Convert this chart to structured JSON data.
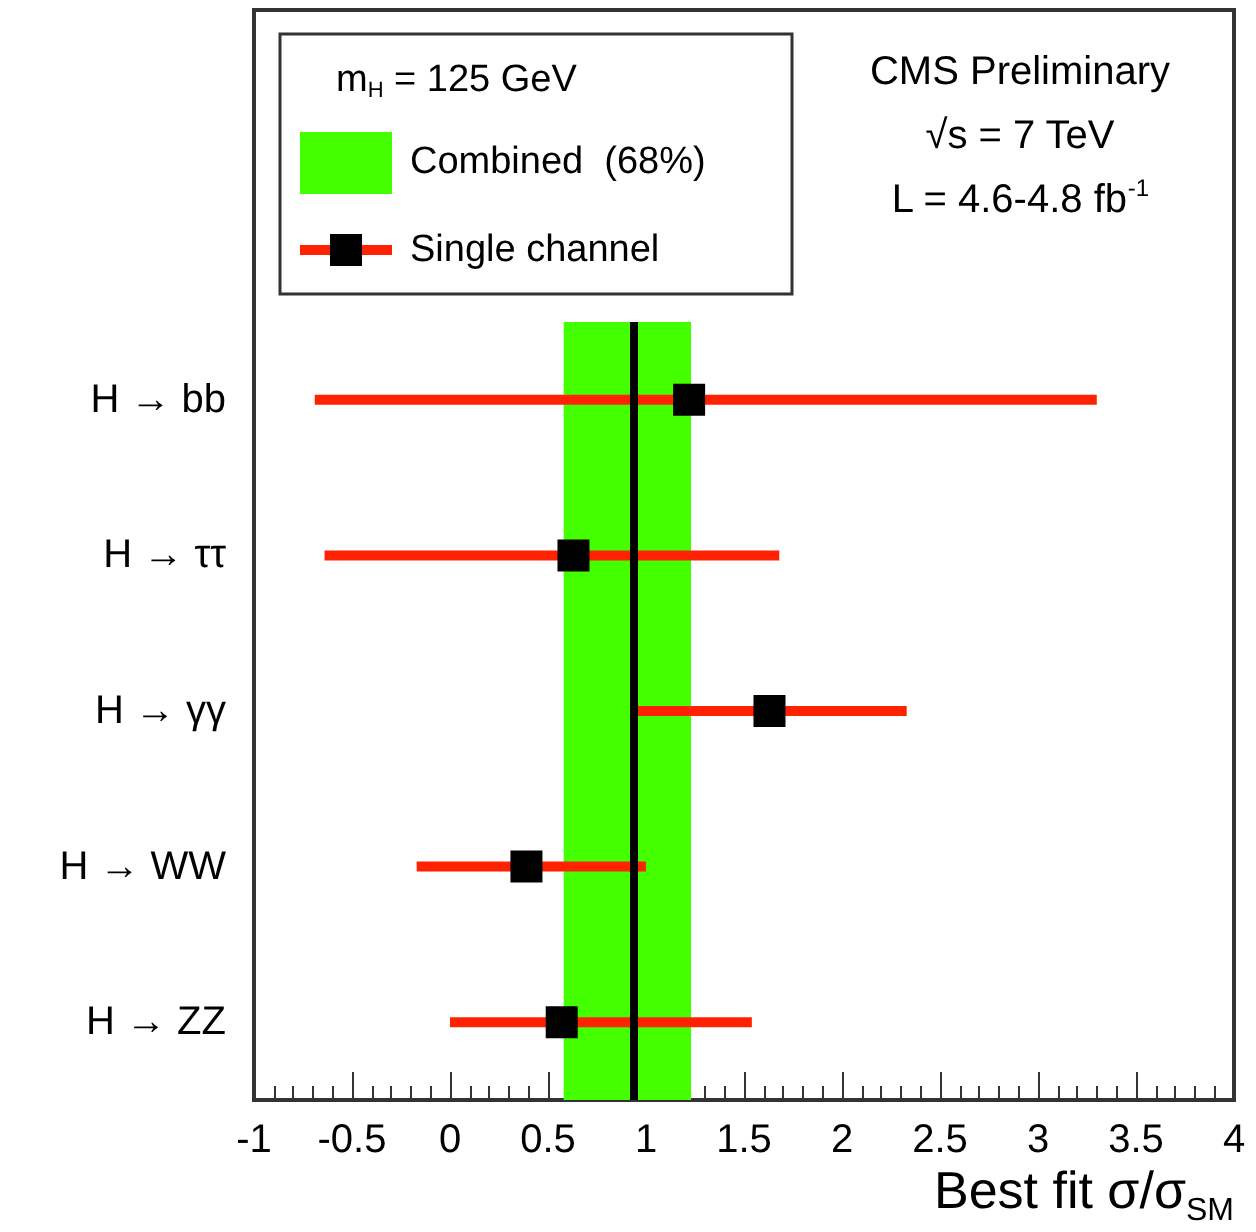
{
  "chart_data": {
    "type": "scatter",
    "orientation": "horizontal",
    "categories": [
      "H → bb",
      "H → ττ",
      "H → γγ",
      "H → WW",
      "H → ZZ"
    ],
    "series": [
      {
        "name": "Single channel",
        "color": "#000000",
        "values": [
          1.22,
          0.63,
          1.63,
          0.39,
          0.57
        ],
        "errors": [
          [
            -0.69,
            3.3
          ],
          [
            -0.64,
            1.68
          ],
          [
            0.95,
            2.33
          ],
          [
            -0.17,
            1.0
          ],
          [
            0.0,
            1.54
          ]
        ]
      }
    ],
    "bands": [
      {
        "axis": "x",
        "from": 0.58,
        "to": 1.23,
        "label": "Combined  (68%)",
        "color": "#44ff00"
      }
    ],
    "ref_lines": [
      {
        "axis": "x",
        "value": 0.94,
        "color": "#000000"
      }
    ],
    "xlim": [
      -1,
      4
    ],
    "xticks": [
      -1,
      -0.5,
      0,
      0.5,
      1,
      1.5,
      2,
      2.5,
      3,
      3.5,
      4
    ],
    "xlabel": "Best fit σ/σ$_{SM}$",
    "legend_title": "m$_{H}$ = 125 GeV",
    "legend": "top left",
    "marker": "square",
    "annotations": [
      "CMS Preliminary",
      "√s = 7 TeV",
      "L = 4.6-4.8 fb$^{-1}$"
    ]
  }
}
